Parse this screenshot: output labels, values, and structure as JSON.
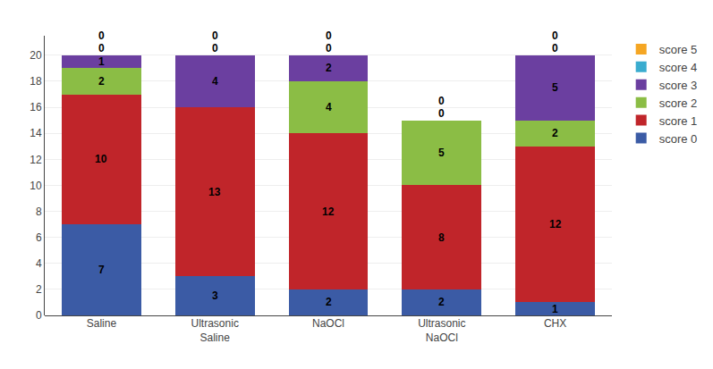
{
  "chart_data": {
    "type": "bar",
    "stacked": true,
    "categories": [
      "Saline",
      "Ultrasonic\nSaline",
      "NaOCl",
      "Ultrasonic\nNaOCl",
      "CHX"
    ],
    "series": [
      {
        "name": "score 0",
        "color": "#3B5BA5",
        "values": [
          7,
          3,
          2,
          2,
          1
        ]
      },
      {
        "name": "score 1",
        "color": "#C0252A",
        "values": [
          10,
          13,
          12,
          8,
          12
        ]
      },
      {
        "name": "score 2",
        "color": "#8BBD45",
        "values": [
          2,
          0,
          4,
          5,
          2
        ],
        "value_labels": [
          "2",
          null,
          "4",
          "5",
          "2"
        ]
      },
      {
        "name": "score 3",
        "color": "#6B3FA0",
        "values": [
          1,
          4,
          2,
          0,
          5
        ],
        "value_labels": [
          "1",
          "4",
          "2",
          null,
          "5"
        ]
      },
      {
        "name": "score 4",
        "color": "#3AACCF",
        "values": [
          0,
          0,
          0,
          0,
          0
        ]
      },
      {
        "name": "score 5",
        "color": "#F5A623",
        "values": [
          0,
          0,
          0,
          0,
          0
        ]
      }
    ],
    "ylim": [
      0,
      21.5
    ],
    "yticks": [
      0,
      2,
      4,
      6,
      8,
      10,
      12,
      14,
      16,
      18,
      20
    ],
    "grid": true,
    "legend": "upper right",
    "data_labels": true
  }
}
